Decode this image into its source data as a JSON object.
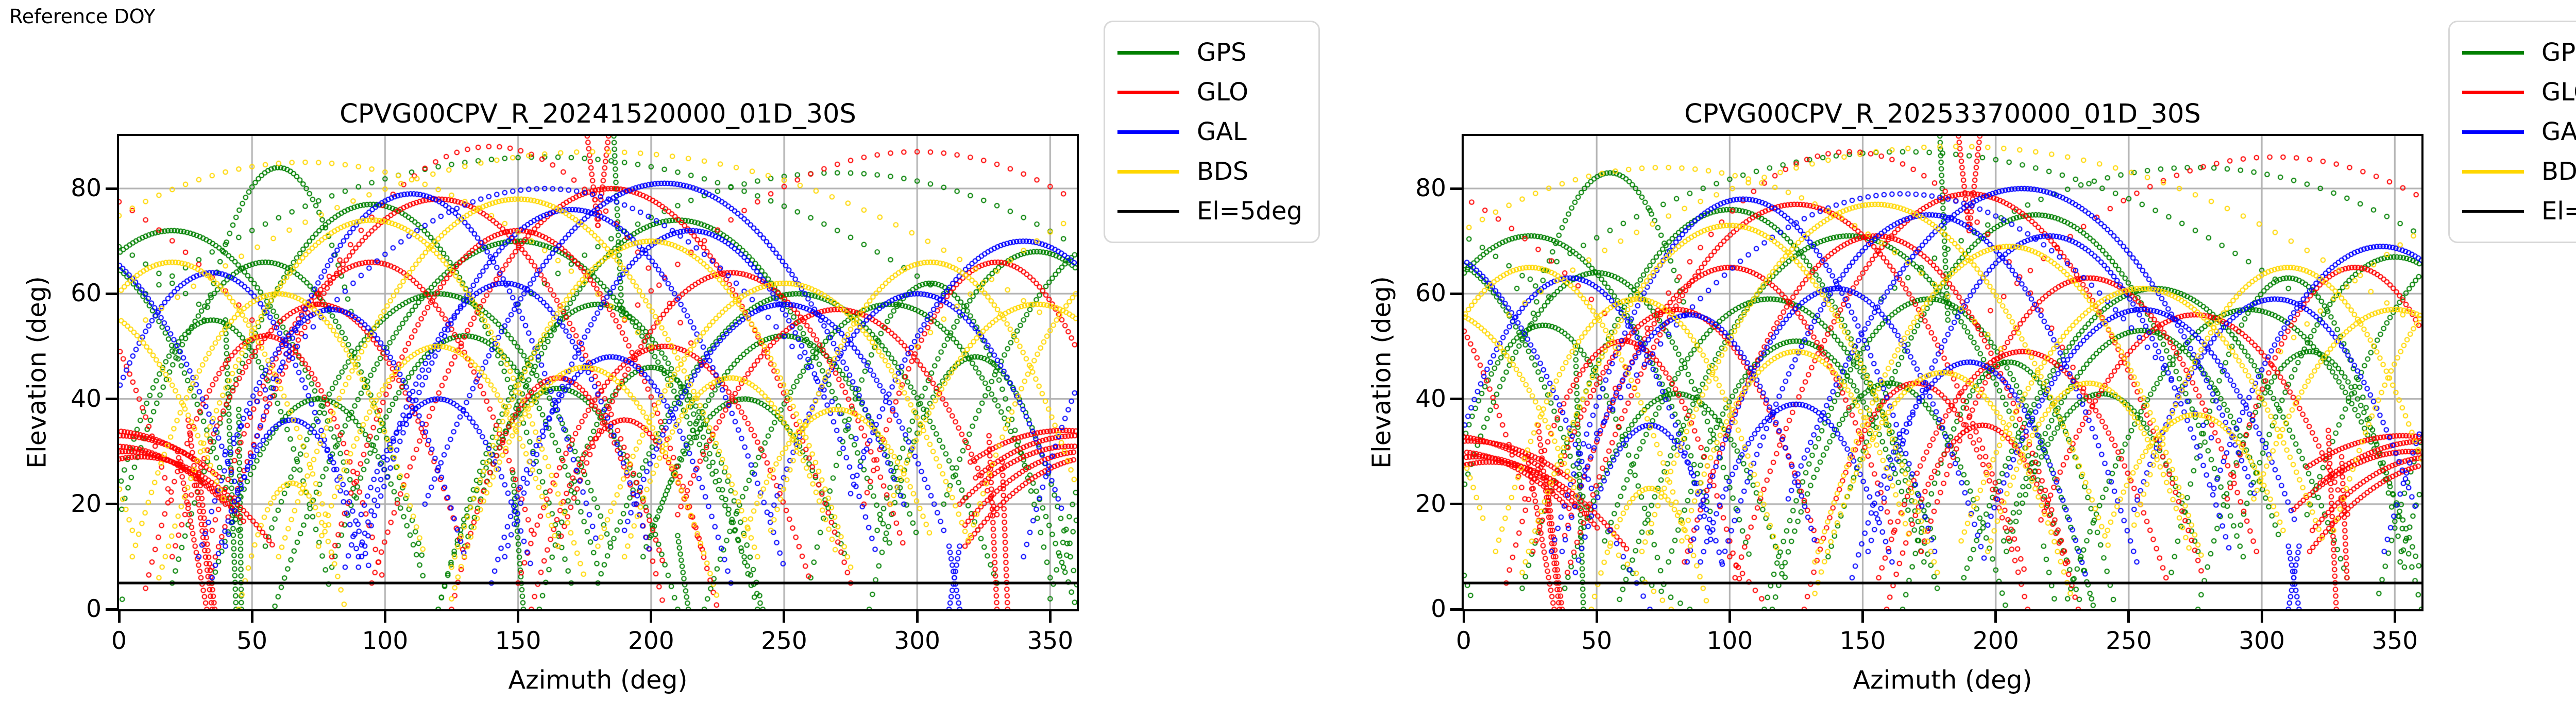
{
  "figure": {
    "note_top_left": "Reference DOY",
    "background": "#ffffff"
  },
  "legend": {
    "items": [
      {
        "label": "GPS",
        "color": "#008000"
      },
      {
        "label": "GLO",
        "color": "#ff0000"
      },
      {
        "label": "GAL",
        "color": "#0000ff"
      },
      {
        "label": "BDS",
        "color": "#ffd700"
      },
      {
        "label": "El=5deg",
        "color": "#000000"
      }
    ]
  },
  "axes_common": {
    "xlabel": "Azimuth (deg)",
    "ylabel": "Elevation (deg)",
    "xlim": [
      0,
      360
    ],
    "ylim": [
      0,
      90
    ],
    "xticks": [
      0,
      50,
      100,
      150,
      200,
      250,
      300,
      350
    ],
    "yticks": [
      0,
      20,
      40,
      60,
      80
    ],
    "grid": true,
    "grid_color": "#b0b0b0",
    "elevation_cutoff": {
      "value": 5,
      "color": "#000000",
      "label": "El=5deg"
    }
  },
  "chart_data": [
    {
      "type": "scatter",
      "title": "CPVG00CPV_R_20241520000_01D_30S",
      "marker": "open-circle",
      "constellations": [
        "GPS",
        "GLO",
        "GAL",
        "BDS"
      ],
      "tracks": [
        [
          "a",
          0,
          95,
          75,
          77,
          5
        ],
        [
          "a",
          0,
          150,
          95,
          70,
          -5
        ],
        [
          "a",
          0,
          55,
          60,
          66,
          8
        ],
        [
          "a",
          0,
          210,
          80,
          74,
          12
        ],
        [
          "a",
          0,
          255,
          75,
          60,
          5
        ],
        [
          "a",
          0,
          290,
          70,
          58,
          0
        ],
        [
          "a",
          0,
          180,
          60,
          58,
          0
        ],
        [
          "a",
          0,
          130,
          50,
          52,
          8
        ],
        [
          "a",
          0,
          322,
          40,
          48,
          0
        ],
        [
          "a",
          0,
          35,
          45,
          55,
          2
        ],
        [
          "a",
          0,
          75,
          40,
          40,
          5
        ],
        [
          "a",
          0,
          165,
          45,
          42,
          0
        ],
        [
          "a",
          0,
          200,
          42,
          46,
          0
        ],
        [
          "a",
          0,
          235,
          38,
          40,
          10
        ],
        [
          "a",
          0,
          305,
          45,
          62,
          6
        ],
        [
          "a",
          0,
          20,
          70,
          72,
          20
        ],
        [
          "a",
          0,
          345,
          60,
          68,
          15
        ],
        [
          "a",
          0,
          60,
          28,
          84,
          55
        ],
        [
          "a",
          0,
          160,
          150,
          86,
          60,
          5
        ],
        [
          "a",
          0,
          270,
          120,
          83,
          58,
          5
        ],
        [
          "a",
          0,
          120,
          65,
          60,
          12
        ],
        [
          "a",
          0,
          250,
          50,
          52,
          14
        ],
        [
          "s",
          0,
          186,
          90,
          189,
          56
        ],
        [
          "s",
          0,
          148,
          26,
          152,
          0
        ],
        [
          "s",
          0,
          210,
          14,
          214,
          0
        ],
        [
          "s",
          0,
          40,
          55,
          44,
          0
        ],
        [
          "s",
          0,
          45,
          38,
          46,
          0
        ],
        [
          "a",
          1,
          0,
          38,
          33,
          25
        ],
        [
          "a",
          1,
          358,
          42,
          31,
          20
        ],
        [
          "a",
          1,
          3,
          45,
          30,
          16
        ],
        [
          "a",
          1,
          355,
          35,
          34,
          28
        ],
        [
          "a",
          1,
          8,
          50,
          29,
          12
        ],
        [
          "a",
          1,
          120,
          85,
          78,
          8
        ],
        [
          "a",
          1,
          185,
          90,
          80,
          5
        ],
        [
          "a",
          1,
          95,
          60,
          66,
          15
        ],
        [
          "a",
          1,
          150,
          70,
          72,
          10
        ],
        [
          "a",
          1,
          230,
          65,
          64,
          12
        ],
        [
          "a",
          1,
          270,
          60,
          57,
          18
        ],
        [
          "a",
          1,
          205,
          55,
          50,
          5
        ],
        [
          "a",
          1,
          165,
          40,
          44,
          0
        ],
        [
          "a",
          1,
          140,
          85,
          88,
          40,
          4
        ],
        [
          "a",
          1,
          300,
          110,
          87,
          55,
          5
        ],
        [
          "a",
          1,
          55,
          45,
          52,
          4
        ],
        [
          "a",
          1,
          330,
          50,
          66,
          20
        ],
        [
          "a",
          1,
          190,
          35,
          36,
          0
        ],
        [
          "a",
          1,
          75,
          55,
          58,
          10
        ],
        [
          "s",
          1,
          26,
          36,
          35,
          0
        ],
        [
          "s",
          1,
          22,
          30,
          33,
          0
        ],
        [
          "s",
          1,
          30,
          26,
          36,
          0
        ],
        [
          "s",
          1,
          327,
          33,
          330,
          0
        ],
        [
          "s",
          1,
          332,
          28,
          334,
          0
        ],
        [
          "s",
          1,
          176,
          90,
          180,
          73
        ],
        [
          "s",
          1,
          180,
          73,
          184,
          90
        ],
        [
          "a",
          2,
          110,
          70,
          79,
          12
        ],
        [
          "a",
          2,
          170,
          80,
          76,
          8
        ],
        [
          "a",
          2,
          215,
          70,
          72,
          10
        ],
        [
          "a",
          2,
          145,
          55,
          62,
          10
        ],
        [
          "a",
          2,
          250,
          60,
          58,
          15
        ],
        [
          "a",
          2,
          80,
          50,
          57,
          10
        ],
        [
          "a",
          2,
          185,
          45,
          48,
          5
        ],
        [
          "a",
          2,
          300,
          55,
          60,
          18
        ],
        [
          "a",
          2,
          35,
          55,
          64,
          10
        ],
        [
          "a",
          2,
          340,
          65,
          70,
          22
        ],
        [
          "a",
          2,
          120,
          35,
          40,
          8
        ],
        [
          "a",
          2,
          205,
          90,
          81,
          20
        ],
        [
          "a",
          2,
          160,
          120,
          80,
          30,
          3
        ],
        [
          "a",
          2,
          65,
          30,
          36,
          6
        ],
        [
          "s",
          2,
          312,
          12,
          316,
          0
        ],
        [
          "s",
          2,
          316,
          12,
          312,
          0
        ],
        [
          "a",
          3,
          95,
          80,
          74,
          6
        ],
        [
          "a",
          3,
          150,
          90,
          78,
          10
        ],
        [
          "a",
          3,
          200,
          75,
          70,
          8
        ],
        [
          "a",
          3,
          250,
          70,
          62,
          12
        ],
        [
          "a",
          3,
          60,
          55,
          60,
          10
        ],
        [
          "a",
          3,
          120,
          45,
          50,
          12
        ],
        [
          "a",
          3,
          305,
          60,
          66,
          15
        ],
        [
          "a",
          3,
          20,
          60,
          66,
          14
        ],
        [
          "a",
          3,
          175,
          50,
          46,
          2
        ],
        [
          "a",
          3,
          230,
          40,
          44,
          10
        ],
        [
          "a",
          3,
          345,
          55,
          58,
          20
        ],
        [
          "a",
          3,
          180,
          170,
          87,
          55,
          6
        ],
        [
          "a",
          3,
          70,
          130,
          85,
          50,
          5
        ],
        [
          "a",
          3,
          65,
          20,
          24,
          0
        ],
        [
          "a",
          3,
          270,
          35,
          38,
          14
        ]
      ]
    },
    {
      "type": "scatter",
      "title": "CPVG00CPV_R_20253370000_01D_30S",
      "marker": "open-circle",
      "constellations": [
        "GPS",
        "GLO",
        "GAL",
        "BDS"
      ],
      "tracks": [
        [
          "a",
          0,
          100,
          78,
          76,
          4
        ],
        [
          "a",
          0,
          145,
          90,
          71,
          -4
        ],
        [
          "a",
          0,
          50,
          58,
          64,
          9
        ],
        [
          "a",
          0,
          215,
          78,
          75,
          10
        ],
        [
          "a",
          0,
          260,
          72,
          61,
          6
        ],
        [
          "a",
          0,
          295,
          68,
          57,
          2
        ],
        [
          "a",
          0,
          175,
          62,
          59,
          0
        ],
        [
          "a",
          0,
          125,
          48,
          51,
          9
        ],
        [
          "a",
          0,
          318,
          42,
          49,
          0
        ],
        [
          "a",
          0,
          30,
          46,
          54,
          3
        ],
        [
          "a",
          0,
          80,
          42,
          41,
          4
        ],
        [
          "a",
          0,
          160,
          44,
          43,
          0
        ],
        [
          "a",
          0,
          205,
          40,
          47,
          0
        ],
        [
          "a",
          0,
          240,
          36,
          41,
          11
        ],
        [
          "a",
          0,
          310,
          44,
          63,
          7
        ],
        [
          "a",
          0,
          25,
          68,
          71,
          18
        ],
        [
          "a",
          0,
          350,
          58,
          67,
          16
        ],
        [
          "a",
          0,
          55,
          30,
          83,
          54
        ],
        [
          "a",
          0,
          165,
          145,
          87,
          61,
          5
        ],
        [
          "a",
          0,
          275,
          118,
          84,
          59,
          5
        ],
        [
          "a",
          0,
          115,
          62,
          59,
          13
        ],
        [
          "a",
          0,
          255,
          52,
          53,
          13
        ],
        [
          "s",
          0,
          179,
          90,
          182,
          55
        ],
        [
          "s",
          0,
          218,
          12,
          222,
          2,
          3
        ],
        [
          "s",
          0,
          232,
          10,
          236,
          2,
          3
        ],
        [
          "s",
          0,
          60,
          8,
          85,
          0,
          4
        ],
        [
          "s",
          0,
          42,
          50,
          45,
          0
        ],
        [
          "a",
          1,
          2,
          40,
          32,
          24
        ],
        [
          "a",
          1,
          356,
          44,
          30,
          19
        ],
        [
          "a",
          1,
          5,
          46,
          29,
          15
        ],
        [
          "a",
          1,
          353,
          36,
          33,
          27
        ],
        [
          "a",
          1,
          10,
          52,
          28,
          11
        ],
        [
          "a",
          1,
          125,
          86,
          77,
          7
        ],
        [
          "a",
          1,
          190,
          88,
          79,
          6
        ],
        [
          "a",
          1,
          100,
          62,
          65,
          14
        ],
        [
          "a",
          1,
          155,
          72,
          71,
          9
        ],
        [
          "a",
          1,
          235,
          63,
          63,
          11
        ],
        [
          "a",
          1,
          275,
          58,
          56,
          17
        ],
        [
          "a",
          1,
          210,
          54,
          49,
          6
        ],
        [
          "a",
          1,
          170,
          42,
          43,
          0
        ],
        [
          "a",
          1,
          145,
          88,
          87,
          42,
          4
        ],
        [
          "a",
          1,
          305,
          112,
          86,
          54,
          5
        ],
        [
          "a",
          1,
          60,
          44,
          51,
          5
        ],
        [
          "a",
          1,
          335,
          48,
          65,
          21
        ],
        [
          "a",
          1,
          195,
          36,
          35,
          0
        ],
        [
          "a",
          1,
          80,
          54,
          57,
          11
        ],
        [
          "s",
          1,
          28,
          35,
          36,
          0
        ],
        [
          "s",
          1,
          24,
          29,
          34,
          0
        ],
        [
          "s",
          1,
          31,
          25,
          37,
          0
        ],
        [
          "s",
          1,
          325,
          34,
          328,
          0
        ],
        [
          "s",
          1,
          330,
          29,
          332,
          6
        ],
        [
          "s",
          1,
          186,
          90,
          190,
          72
        ],
        [
          "s",
          1,
          190,
          72,
          194,
          90
        ],
        [
          "s",
          1,
          100,
          10,
          112,
          2,
          3
        ],
        [
          "a",
          2,
          105,
          72,
          78,
          11
        ],
        [
          "a",
          2,
          175,
          78,
          75,
          9
        ],
        [
          "a",
          2,
          220,
          68,
          71,
          11
        ],
        [
          "a",
          2,
          140,
          56,
          61,
          9
        ],
        [
          "a",
          2,
          255,
          58,
          57,
          16
        ],
        [
          "a",
          2,
          85,
          48,
          56,
          11
        ],
        [
          "a",
          2,
          190,
          44,
          47,
          6
        ],
        [
          "a",
          2,
          305,
          53,
          59,
          19
        ],
        [
          "a",
          2,
          40,
          54,
          63,
          11
        ],
        [
          "a",
          2,
          345,
          63,
          69,
          23
        ],
        [
          "a",
          2,
          125,
          36,
          39,
          9
        ],
        [
          "a",
          2,
          210,
          88,
          80,
          21
        ],
        [
          "a",
          2,
          165,
          118,
          79,
          31,
          3
        ],
        [
          "a",
          2,
          70,
          28,
          35,
          7
        ],
        [
          "s",
          2,
          310,
          12,
          314,
          0
        ],
        [
          "s",
          2,
          314,
          12,
          310,
          0
        ],
        [
          "s",
          2,
          55,
          15,
          70,
          0,
          4
        ],
        [
          "a",
          3,
          100,
          78,
          73,
          7
        ],
        [
          "a",
          3,
          155,
          88,
          77,
          11
        ],
        [
          "a",
          3,
          205,
          73,
          69,
          9
        ],
        [
          "a",
          3,
          255,
          68,
          61,
          13
        ],
        [
          "a",
          3,
          65,
          53,
          59,
          11
        ],
        [
          "a",
          3,
          125,
          43,
          49,
          13
        ],
        [
          "a",
          3,
          310,
          58,
          65,
          16
        ],
        [
          "a",
          3,
          25,
          58,
          65,
          15
        ],
        [
          "a",
          3,
          180,
          48,
          45,
          3
        ],
        [
          "a",
          3,
          235,
          38,
          43,
          11
        ],
        [
          "a",
          3,
          350,
          53,
          57,
          21
        ],
        [
          "a",
          3,
          185,
          168,
          88,
          56,
          6
        ],
        [
          "a",
          3,
          75,
          128,
          84,
          49,
          5
        ],
        [
          "a",
          3,
          70,
          22,
          23,
          0
        ],
        [
          "a",
          3,
          275,
          33,
          37,
          15
        ],
        [
          "s",
          3,
          55,
          12,
          78,
          0,
          4
        ]
      ]
    }
  ]
}
